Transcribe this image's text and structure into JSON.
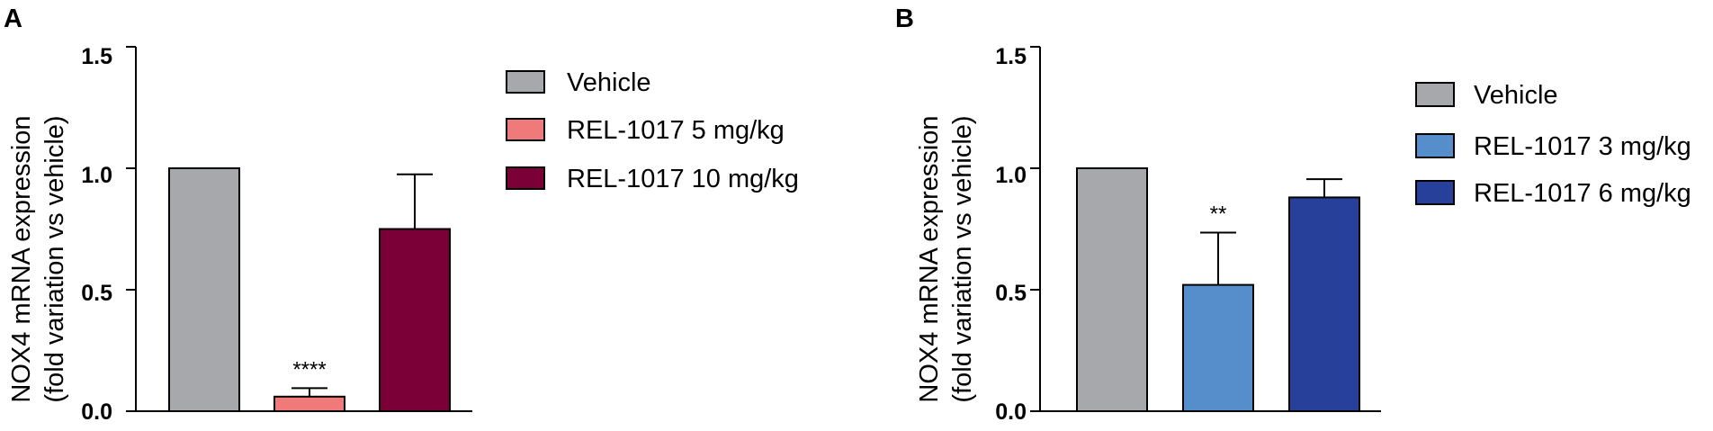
{
  "chart_data": [
    {
      "type": "bar",
      "panel": "A",
      "ylabel_line1": "NOX4 mRNA expression",
      "ylabel_line2": "(fold variation vs vehicle)",
      "ylim": [
        0,
        1.5
      ],
      "yticks": [
        "0.0",
        "0.5",
        "1.0",
        "1.5"
      ],
      "legend_position": "right",
      "categories": [
        "Vehicle",
        "REL-1017 5 mg/kg",
        "REL-1017 10 mg/kg"
      ],
      "values": [
        1.0,
        0.06,
        0.75
      ],
      "errors": [
        0,
        0.035,
        0.225
      ],
      "colors": [
        "#a7a8ab",
        "#f07a7a",
        "#7b0038"
      ],
      "annotations": [
        "",
        "****",
        ""
      ]
    },
    {
      "type": "bar",
      "panel": "B",
      "ylabel_line1": "NOX4 mRNA expression",
      "ylabel_line2": "(fold variation vs vehicle)",
      "ylim": [
        0,
        1.5
      ],
      "yticks": [
        "0.0",
        "0.5",
        "1.0",
        "1.5"
      ],
      "legend_position": "right",
      "categories": [
        "Vehicle",
        "REL-1017 3 mg/kg",
        "REL-1017 6 mg/kg"
      ],
      "values": [
        1.0,
        0.52,
        0.88
      ],
      "errors": [
        0,
        0.215,
        0.075
      ],
      "colors": [
        "#a7a8ab",
        "#558ecb",
        "#27419a"
      ],
      "annotations": [
        "",
        "**",
        ""
      ]
    }
  ]
}
